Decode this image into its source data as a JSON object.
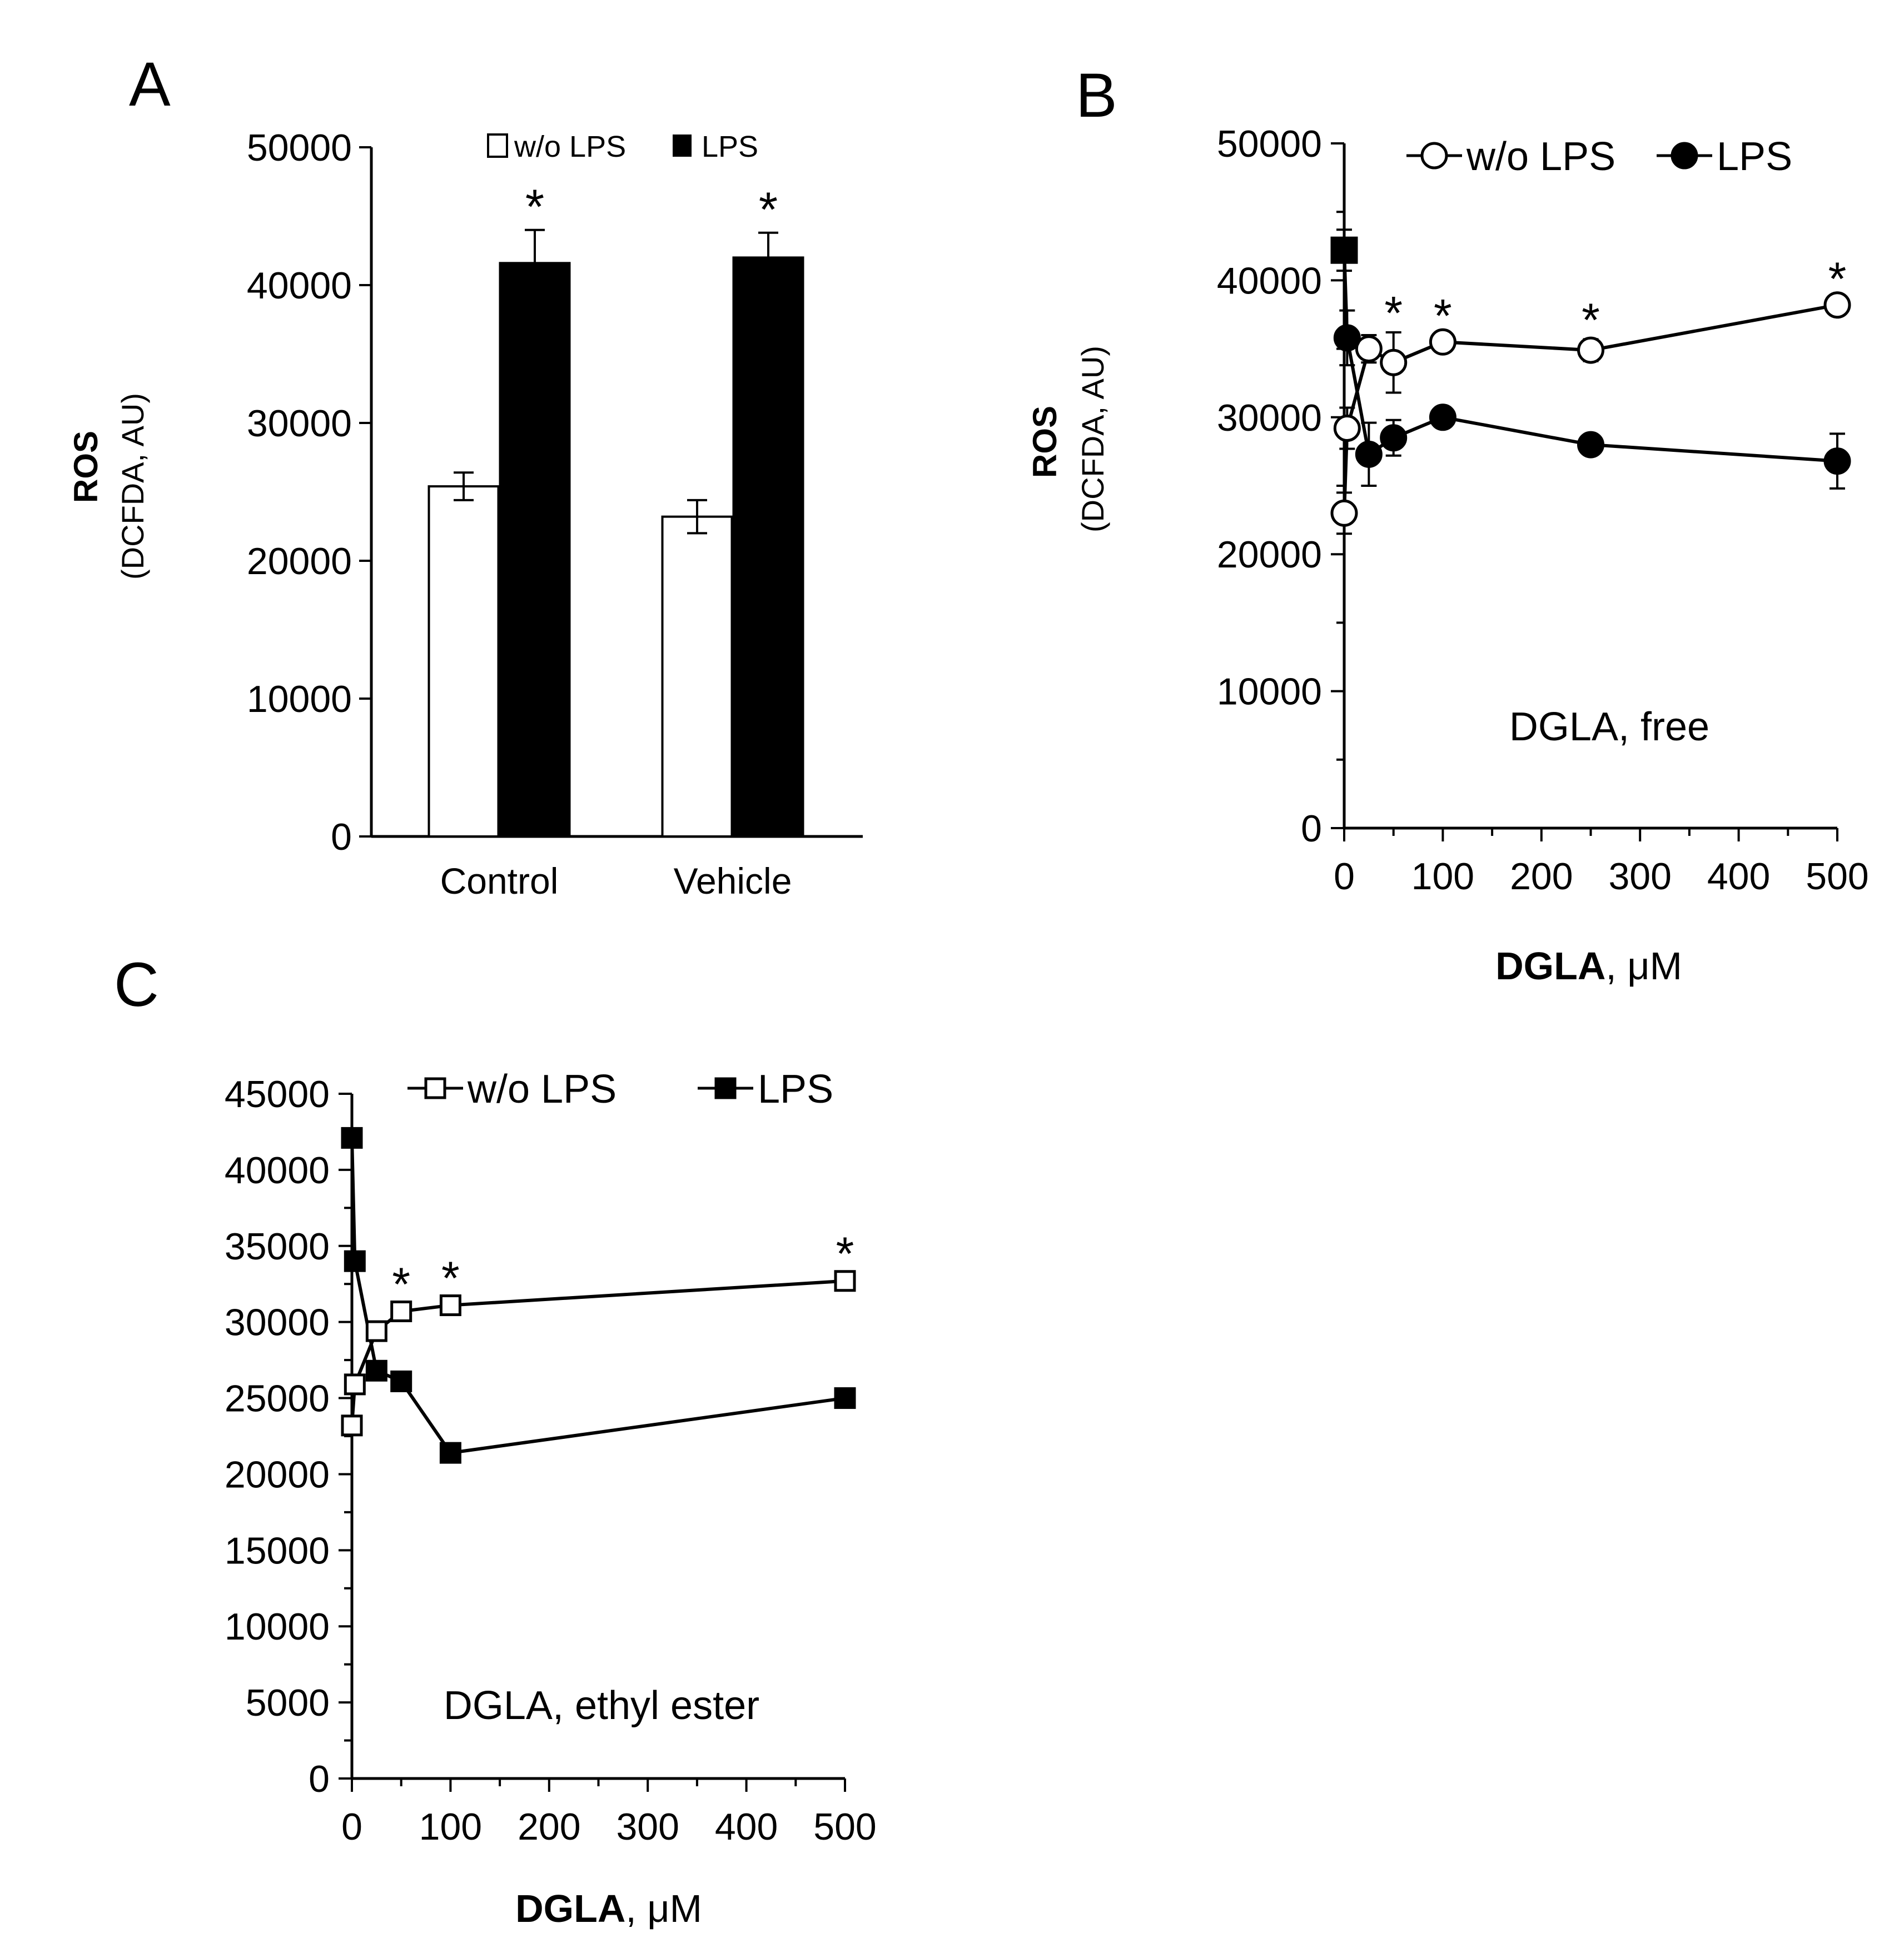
{
  "figure": {
    "background": "#ffffff",
    "ink": "#000000"
  },
  "chart_data": [
    {
      "panel": "A",
      "type": "bar",
      "categories": [
        "Control",
        "Vehicle"
      ],
      "ylabel": "ROS",
      "ylabel_sub": "(DCFDA, AU)",
      "ylim": [
        0,
        50000
      ],
      "ytick_step": 10000,
      "yticks": [
        "0",
        "10000",
        "20000",
        "30000",
        "40000",
        "50000"
      ],
      "legend": {
        "placement": "top",
        "entries": [
          "w/o LPS",
          "LPS"
        ]
      },
      "series": [
        {
          "name": "w/o LPS",
          "fill": "#ffffff",
          "values": [
            25400,
            23200
          ],
          "errors": [
            1000,
            1200
          ]
        },
        {
          "name": "LPS",
          "fill": "#000000",
          "values": [
            41600,
            42000
          ],
          "errors": [
            2400,
            1800
          ]
        }
      ],
      "significance": {
        "symbol": "*",
        "series": "LPS",
        "categories": [
          "Control",
          "Vehicle"
        ]
      }
    },
    {
      "panel": "B",
      "type": "line",
      "marker": "circle",
      "xlabel_bold": "DGLA",
      "xlabel_rest": ", μM",
      "xlim": [
        0,
        500
      ],
      "xticks": [
        "0",
        "100",
        "200",
        "300",
        "400",
        "500"
      ],
      "ylabel": "ROS",
      "ylabel_sub": "(DCFDA, AU)",
      "ylim": [
        0,
        50000
      ],
      "ytick_step": 10000,
      "yticks": [
        "0",
        "10000",
        "20000",
        "30000",
        "40000",
        "50000"
      ],
      "annotation": "DGLA, free",
      "legend": {
        "placement": "top-right",
        "entries": [
          "w/o LPS",
          "LPS"
        ]
      },
      "series": [
        {
          "name": "w/o LPS",
          "fill": "#ffffff",
          "points": [
            [
              0,
              23000
            ],
            [
              3,
              29200
            ],
            [
              25,
              35000
            ],
            [
              50,
              34000
            ],
            [
              100,
              35500
            ],
            [
              250,
              34900
            ],
            [
              500,
              38200
            ]
          ],
          "errors": [
            1500,
            1500,
            1000,
            2200,
            500,
            800,
            500
          ]
        },
        {
          "name": "LPS",
          "fill": "#000000",
          "points": [
            [
              3,
              35800
            ],
            [
              25,
              27300
            ],
            [
              50,
              28500
            ],
            [
              100,
              30000
            ],
            [
              250,
              28000
            ],
            [
              500,
              26800
            ]
          ],
          "errors": [
            2000,
            2300,
            1300,
            500,
            500,
            2000
          ]
        }
      ],
      "extra_point": {
        "name": "LPS (square)",
        "marker": "square",
        "x": 0,
        "y": 42200,
        "error": 1500
      },
      "significance": {
        "symbol": "*",
        "series": "w/o LPS",
        "x_values": [
          50,
          100,
          250,
          500
        ]
      }
    },
    {
      "panel": "C",
      "type": "line",
      "marker": "square",
      "xlabel_bold": "DGLA",
      "xlabel_rest": ", μM",
      "xlim": [
        0,
        500
      ],
      "xticks": [
        "0",
        "100",
        "200",
        "300",
        "400",
        "500"
      ],
      "ylim": [
        0,
        45000
      ],
      "ytick_step": 5000,
      "yticks": [
        "0",
        "5000",
        "10000",
        "15000",
        "20000",
        "25000",
        "30000",
        "35000",
        "40000",
        "45000"
      ],
      "annotation": "DGLA, ethyl ester",
      "legend": {
        "placement": "top",
        "entries": [
          "w/o LPS",
          "LPS"
        ]
      },
      "series": [
        {
          "name": "w/o LPS",
          "fill": "#ffffff",
          "points": [
            [
              0,
              23200
            ],
            [
              3,
              25900
            ],
            [
              25,
              29400
            ],
            [
              50,
              30700
            ],
            [
              100,
              31100
            ],
            [
              500,
              32700
            ]
          ]
        },
        {
          "name": "LPS",
          "fill": "#000000",
          "points": [
            [
              3,
              34000
            ],
            [
              25,
              26800
            ],
            [
              50,
              26100
            ],
            [
              100,
              21400
            ],
            [
              500,
              25000
            ]
          ]
        }
      ],
      "extra_point": {
        "name": "LPS (top)",
        "marker": "square",
        "x": 0,
        "y": 42100
      },
      "significance": {
        "symbol": "*",
        "series": "w/o LPS",
        "x_values": [
          50,
          100,
          500
        ]
      }
    }
  ],
  "panels": [
    {
      "letter": "A"
    },
    {
      "letter": "B"
    },
    {
      "letter": "C"
    }
  ]
}
